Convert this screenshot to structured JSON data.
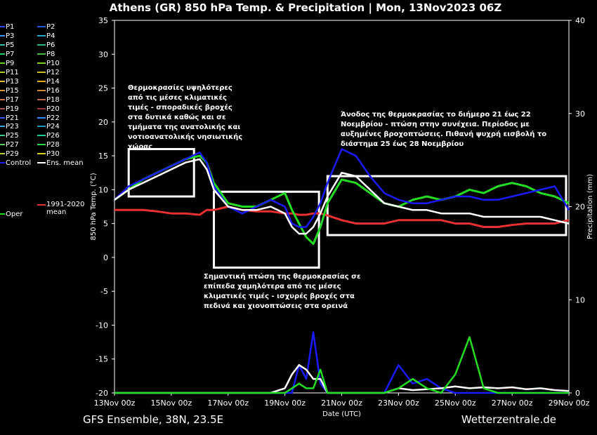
{
  "title": "Athens  (GR)  850 hPa Temp. & Precipitation | Mon, 13Nov2023 06Z",
  "footer_left": "GFS Ensemble, 38N, 23.5E",
  "footer_right": "Wetterzentrale.de",
  "chart_data": {
    "type": "line",
    "xlabel": "Date (UTC)",
    "ylabel": "850 hPa Temp. (°C)",
    "y2label": "Precipitation (mm)",
    "xlim": [
      0,
      16
    ],
    "ylim": [
      -20,
      35
    ],
    "y2lim": [
      0,
      40
    ],
    "x_ticks": [
      {
        "x": 0,
        "label": "13Nov 00z"
      },
      {
        "x": 2,
        "label": "15Nov 00z"
      },
      {
        "x": 4,
        "label": "17Nov 00z"
      },
      {
        "x": 6,
        "label": "19Nov 00z"
      },
      {
        "x": 8,
        "label": "21Nov 00z"
      },
      {
        "x": 10,
        "label": "23Nov 00z"
      },
      {
        "x": 12,
        "label": "25Nov 00z"
      },
      {
        "x": 14,
        "label": "27Nov 00z"
      },
      {
        "x": 16,
        "label": "29Nov 00z"
      }
    ],
    "y_ticks": [
      -20,
      -15,
      -10,
      -5,
      0,
      5,
      10,
      15,
      20,
      25,
      30,
      35
    ],
    "y2_ticks": [
      0,
      10,
      20,
      30,
      40
    ],
    "grid": false,
    "legend_placement": "left",
    "x": [
      0,
      0.5,
      1,
      1.5,
      2,
      2.5,
      3,
      3.25,
      3.5,
      4,
      4.5,
      5,
      5.5,
      6,
      6.25,
      6.5,
      6.75,
      7,
      7.25,
      7.5,
      8,
      8.5,
      9,
      9.5,
      10,
      10.5,
      11,
      11.5,
      12,
      12.5,
      13,
      13.5,
      14,
      14.5,
      15,
      15.5,
      16
    ],
    "series": [
      {
        "name": "Control",
        "color": "#1a1aff",
        "width": 2.5,
        "values": [
          8.5,
          10.5,
          11.5,
          12.5,
          13.5,
          14.5,
          15.5,
          14,
          10.5,
          7.5,
          6.5,
          7.5,
          8.5,
          7.5,
          5,
          4.5,
          4.5,
          6,
          8,
          11,
          16,
          15,
          12,
          9.5,
          8.5,
          8,
          8,
          8.5,
          9,
          9,
          8.5,
          8.5,
          9,
          9.5,
          10,
          10.5,
          7
        ]
      },
      {
        "name": "Ens. mean",
        "color": "#ffffff",
        "width": 2.5,
        "values": [
          8.5,
          10,
          11,
          12,
          13,
          14,
          14.5,
          13,
          10,
          7.5,
          7,
          7,
          7.5,
          6.5,
          4.5,
          3.5,
          3.5,
          4.5,
          6.5,
          9,
          12.5,
          12,
          10,
          8,
          7.5,
          7,
          7,
          6.5,
          6.5,
          6.5,
          6,
          6,
          6,
          6,
          6,
          5.5,
          5
        ]
      },
      {
        "name": "Oper",
        "color": "#22dd22",
        "width": 3,
        "values": [
          8.5,
          10,
          11.5,
          12.5,
          13.5,
          14.5,
          15,
          14,
          11,
          8,
          7.5,
          7.5,
          8.5,
          9.5,
          7,
          5,
          3,
          2,
          4.5,
          8,
          11.5,
          11,
          9.5,
          8,
          7.5,
          8.5,
          9,
          8.5,
          9,
          10,
          9.5,
          10.5,
          11,
          10.5,
          9.5,
          9,
          8
        ]
      },
      {
        "name": "1991-2020 mean",
        "color": "#e83030",
        "width": 3,
        "values": [
          7,
          7,
          7,
          6.8,
          6.5,
          6.5,
          6.3,
          7,
          7,
          7.5,
          7,
          6.8,
          6.8,
          6.5,
          6.5,
          6.3,
          6.3,
          6.5,
          6.5,
          6.2,
          5.5,
          5,
          5,
          5,
          5.5,
          5.5,
          5.5,
          5.5,
          5,
          5,
          4.5,
          4.5,
          4.8,
          5,
          5,
          5,
          5.5
        ]
      }
    ],
    "ensemble_members": [
      "P1",
      "P2",
      "P3",
      "P4",
      "P5",
      "P6",
      "P7",
      "P8",
      "P9",
      "P10",
      "P11",
      "P12",
      "P13",
      "P14",
      "P15",
      "P16",
      "P17",
      "P18",
      "P19",
      "P20",
      "P21",
      "P22",
      "P23",
      "P24",
      "P25",
      "P26",
      "P27",
      "P28",
      "P29",
      "P30"
    ],
    "precipitation_series": [
      {
        "name": "Control",
        "color": "#1a1aff",
        "values": [
          0,
          0,
          0,
          0,
          0,
          0,
          0,
          0,
          0,
          0,
          0,
          0,
          0,
          0,
          0,
          3,
          1.5,
          6.5,
          1,
          0,
          0,
          0,
          0,
          0,
          3,
          1,
          1.5,
          0.5,
          0,
          0,
          0,
          0,
          0,
          0,
          0,
          0,
          0
        ]
      },
      {
        "name": "Ens. mean",
        "color": "#ffffff",
        "values": [
          0,
          0,
          0,
          0,
          0,
          0,
          0,
          0,
          0,
          0,
          0,
          0,
          0,
          0.5,
          2,
          3,
          2.5,
          1.5,
          1.5,
          0,
          0,
          0,
          0,
          0,
          0.5,
          0.3,
          0.4,
          0.5,
          0.7,
          0.5,
          0.6,
          0.5,
          0.6,
          0.4,
          0.5,
          0.3,
          0.2
        ]
      },
      {
        "name": "Oper",
        "color": "#22dd22",
        "values": [
          0,
          0,
          0,
          0,
          0,
          0,
          0,
          0,
          0,
          0,
          0,
          0,
          0,
          0,
          0.5,
          1,
          0.5,
          0.5,
          2.5,
          0,
          0,
          0,
          0,
          0,
          0.5,
          1.5,
          0.5,
          0,
          2,
          6,
          0.5,
          0,
          0,
          0,
          0,
          0,
          0
        ]
      }
    ],
    "annotations": [
      "Θερμοκρασίες υψηλότερες από τις μέσες κλιματικές τιμές - σποραδικές βροχές στα δυτικά καθώς και σε τμήματα της ανατολικής και νοτιοανατολικής νησιωτικής χώρας",
      "Σημαντική πτώση της θερμοκρασίας σε επίπεδα χαμηλότερα από τις μέσες κλιματικές τιμές - ισχυρές βροχές στα πεδινά και χιονοπτώσεις στα ορεινά",
      "Άνοδος της θερμοκρασίας το διήμερο 21 έως 22 Νοεμβρίου - πτώση στην συνέχεια. Περίοδος με αυξημένες βροχοπτώσεις. Πιθανή ψυχρή εισβολή το διάστημα 25 έως 28 Νοεμβρίου"
    ],
    "annotation_boxes": [
      {
        "x": [
          0.5,
          2.8
        ],
        "y": [
          9,
          16
        ]
      },
      {
        "x": [
          3.5,
          7.2
        ],
        "y": [
          -1.5,
          9.7
        ]
      },
      {
        "x": [
          7.5,
          15.9
        ],
        "y": [
          3.3,
          12
        ]
      }
    ]
  },
  "legend": [
    {
      "label": "P1",
      "color": "#3344ff"
    },
    {
      "label": "P2",
      "color": "#2255dd"
    },
    {
      "label": "P3",
      "color": "#3399ff"
    },
    {
      "label": "P4",
      "color": "#22aacc"
    },
    {
      "label": "P5",
      "color": "#33bbbb"
    },
    {
      "label": "P6",
      "color": "#22bb88"
    },
    {
      "label": "P7",
      "color": "#22cc66"
    },
    {
      "label": "P8",
      "color": "#44bb44"
    },
    {
      "label": "P9",
      "color": "#66cc22"
    },
    {
      "label": "P10",
      "color": "#88cc22"
    },
    {
      "label": "P11",
      "color": "#aacc22"
    },
    {
      "label": "P12",
      "color": "#ccbb22"
    },
    {
      "label": "P13",
      "color": "#ddbb33"
    },
    {
      "label": "P14",
      "color": "#ddaa22"
    },
    {
      "label": "P15",
      "color": "#dd9933"
    },
    {
      "label": "P16",
      "color": "#cc8833"
    },
    {
      "label": "P17",
      "color": "#cc7744"
    },
    {
      "label": "P18",
      "color": "#bb6644"
    },
    {
      "label": "P19",
      "color": "#aa5555"
    },
    {
      "label": "P20",
      "color": "#993333"
    },
    {
      "label": "P21",
      "color": "#3355ff"
    },
    {
      "label": "P22",
      "color": "#3388ff"
    },
    {
      "label": "P23",
      "color": "#33aadd"
    },
    {
      "label": "P24",
      "color": "#2299bb"
    },
    {
      "label": "P25",
      "color": "#33cc88"
    },
    {
      "label": "P26",
      "color": "#22cc99"
    },
    {
      "label": "P27",
      "color": "#55cc55"
    },
    {
      "label": "P28",
      "color": "#22dd44"
    },
    {
      "label": "P29",
      "color": "#bbcc33"
    },
    {
      "label": "P30",
      "color": "#ddcc22"
    },
    {
      "label": "Control",
      "color": "#1a1aff"
    },
    {
      "label": "Ens. mean",
      "color": "#ffffff"
    },
    {
      "label": "Oper",
      "color": "#22dd22"
    },
    {
      "label": "1991-2020 mean",
      "color": "#e83030"
    }
  ]
}
